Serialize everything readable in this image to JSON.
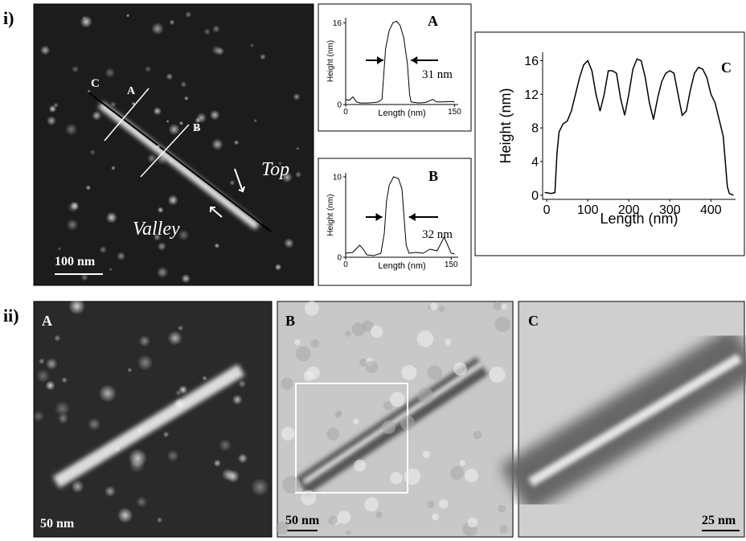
{
  "figure": {
    "part_i": "i)",
    "part_ii": "ii)",
    "image_i": {
      "line_c": "C",
      "line_a": "A",
      "line_b": "B",
      "top": "Top",
      "valley": "Valley",
      "scale": "100 nm"
    },
    "image_ii": [
      {
        "label": "A",
        "scale": "50 nm"
      },
      {
        "label": "B",
        "scale": "50 nm"
      },
      {
        "label": "C",
        "scale": "25 nm"
      }
    ]
  },
  "chart_data": [
    {
      "type": "line",
      "title": "A",
      "x_label": "Length (nm)",
      "y_label": "Height (nm)",
      "annotation": "31 nm",
      "color": "#000000",
      "x": [
        0,
        5,
        10,
        15,
        20,
        30,
        40,
        45,
        50,
        52,
        55,
        60,
        65,
        70,
        75,
        80,
        85,
        88,
        90,
        100,
        110,
        120,
        125,
        135,
        145,
        150
      ],
      "values": [
        1,
        0.8,
        1.5,
        0.5,
        0.3,
        0.3,
        0.4,
        0.5,
        1,
        5,
        11,
        14.5,
        16,
        16.3,
        15.5,
        13,
        8,
        2,
        0.5,
        0.3,
        0.4,
        1,
        0.5,
        0.5,
        0.6,
        0.5
      ],
      "xlim": [
        0,
        155
      ],
      "ylim": [
        0,
        17
      ],
      "xticks": [
        0,
        150
      ],
      "yticks": [
        0,
        16
      ]
    },
    {
      "type": "line",
      "title": "B",
      "x_label": "Length (nm)",
      "y_label": "Height (nm)",
      "annotation": "32 nm",
      "color": "#000000",
      "x": [
        0,
        10,
        20,
        25,
        30,
        40,
        50,
        55,
        58,
        62,
        68,
        75,
        80,
        83,
        86,
        90,
        100,
        110,
        120,
        130,
        140,
        145,
        150,
        155
      ],
      "values": [
        0.5,
        0.6,
        1.5,
        1,
        0.3,
        0.2,
        0.5,
        3,
        7,
        9,
        10,
        9.8,
        8.5,
        5,
        1.5,
        0.5,
        0.6,
        0.5,
        1,
        0.8,
        2.5,
        1.5,
        0.5,
        0.4
      ],
      "xlim": [
        0,
        160
      ],
      "ylim": [
        0,
        10.5
      ],
      "xticks": [
        0,
        150
      ],
      "yticks": [
        0,
        10
      ]
    },
    {
      "type": "line",
      "title": "C",
      "x_label": "Length (nm)",
      "y_label": "Height (nm)",
      "color": "#000000",
      "x": [
        -5,
        0,
        10,
        20,
        25,
        30,
        40,
        50,
        60,
        70,
        80,
        90,
        100,
        110,
        120,
        130,
        140,
        150,
        160,
        170,
        180,
        190,
        200,
        210,
        220,
        230,
        240,
        250,
        260,
        270,
        280,
        290,
        300,
        310,
        320,
        330,
        340,
        350,
        360,
        370,
        380,
        390,
        400,
        410,
        420,
        430,
        440,
        445,
        455
      ],
      "values": [
        0.3,
        0.3,
        0.2,
        0.3,
        5,
        7.5,
        8.5,
        8.8,
        10,
        12,
        14,
        15.5,
        16,
        14.8,
        12,
        10,
        12,
        14.8,
        14.8,
        14.5,
        11.5,
        9.5,
        12,
        15,
        16.2,
        16,
        14,
        11,
        9,
        11.5,
        13.5,
        14.5,
        14.8,
        14.5,
        12,
        9.5,
        10,
        12.5,
        14.5,
        15.2,
        15,
        14,
        12,
        11,
        9,
        7,
        1,
        0.2,
        0
      ],
      "xlim": [
        -10,
        460
      ],
      "ylim": [
        -0.5,
        17
      ],
      "xticks": [
        0,
        100,
        200,
        300,
        400
      ],
      "yticks": [
        0,
        4,
        8,
        12,
        16
      ]
    }
  ]
}
